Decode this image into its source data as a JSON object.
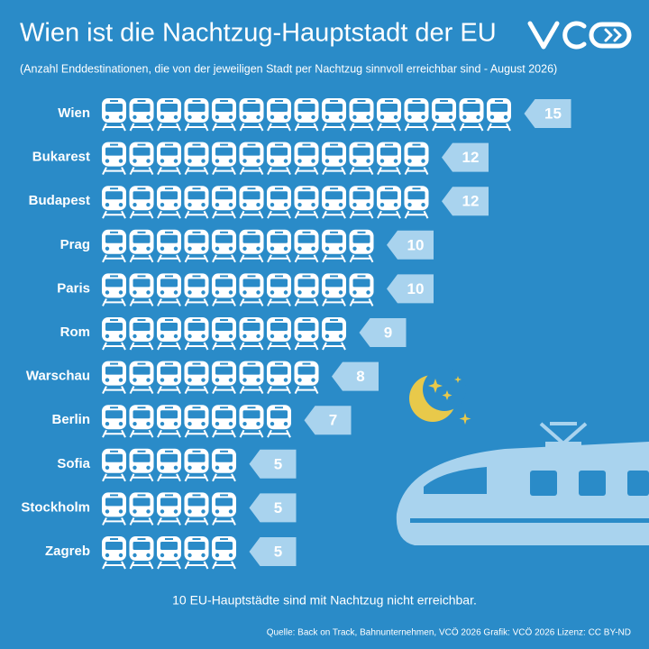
{
  "chart_data": {
    "type": "pictogram",
    "title": "Wien ist die Nachtzug-Hauptstadt der EU",
    "subtitle": "(Anzahl Enddestinationen, die von der jeweiligen Stadt per Nachtzug sinnvoll erreichbar sind - August 2026)",
    "categories": [
      "Wien",
      "Bukarest",
      "Budapest",
      "Prag",
      "Paris",
      "Rom",
      "Warschau",
      "Berlin",
      "Sofia",
      "Stockholm",
      "Zagreb"
    ],
    "values": [
      15,
      12,
      12,
      10,
      10,
      9,
      8,
      7,
      5,
      5,
      5
    ],
    "color": "#ffffff",
    "label_color": "#a9d3ee",
    "footnote": "10 EU-Hauptstädte sind mit Nachtzug nicht erreichbar.",
    "source": "Quelle: Back on Track, Bahnunternehmen, VCÖ 2026 Grafik: VCÖ 2026 Lizenz: CC BY-ND"
  }
}
